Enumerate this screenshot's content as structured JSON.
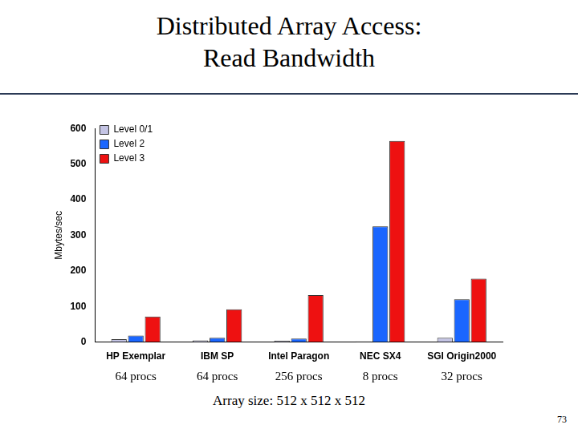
{
  "chart_data": {
    "type": "bar",
    "title": "Distributed Array Access:\nRead Bandwidth",
    "y_label": "Mbytes/sec",
    "categories": [
      "HP Exemplar",
      "IBM SP",
      "Intel Paragon",
      "NEC SX4",
      "SGI Origin2000"
    ],
    "category_notes": [
      "64 procs",
      "64 procs",
      "256 procs",
      "8 procs",
      "32 procs"
    ],
    "series": [
      {
        "name": "Level 0/1",
        "color": "#c4c4e4",
        "values": [
          8,
          5,
          4,
          2,
          12
        ]
      },
      {
        "name": "Level 2",
        "color": "#1a66ff",
        "values": [
          18,
          12,
          10,
          325,
          120
        ]
      },
      {
        "name": "Level 3",
        "color": "#ee1111",
        "values": [
          72,
          92,
          132,
          565,
          178
        ]
      }
    ],
    "ylim": [
      0,
      600
    ],
    "yticks": [
      0,
      100,
      200,
      300,
      400,
      500,
      600
    ],
    "grid": false,
    "legend": "upper left",
    "footnote": "Array size: 512 x 512 x 512",
    "page_number": "73"
  }
}
